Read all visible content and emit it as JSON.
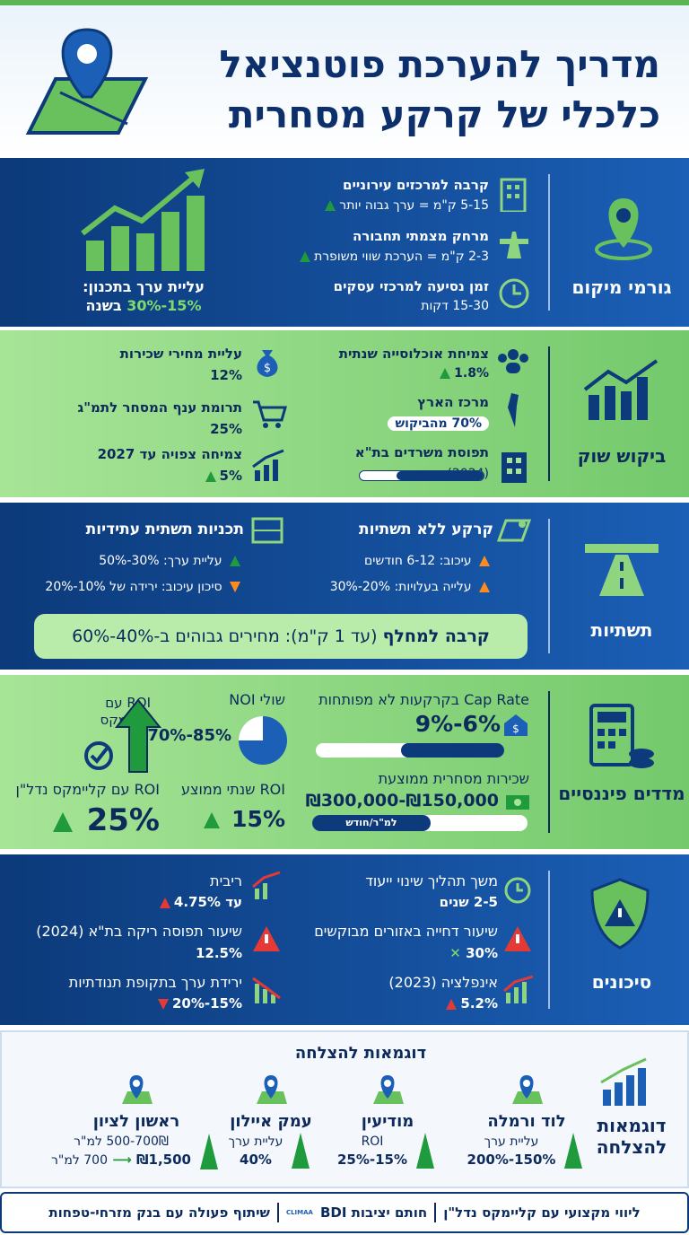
{
  "header": {
    "title": [
      "מדריך להערכת פוטנציאל",
      "כלכלי של קרקע מסחרית"
    ]
  },
  "location": {
    "label": "גורמי מיקום",
    "items": [
      {
        "title": "קרבה למרכזים עירוניים",
        "value": "5-15 ק\"מ = ערך גבוה יותר"
      },
      {
        "title": "מרחק מצמתי תחבורה",
        "value": "2-3 ק\"מ = הערכת שווי משופרת"
      },
      {
        "title": "זמן נסיעה למרכזי עסקים",
        "value": "15-30 דקות"
      }
    ],
    "highlight": {
      "label": "עליית ערך בתכנון:",
      "value": "15%-30%",
      "suffix": "בשנה"
    }
  },
  "demand": {
    "label": "ביקוש שוק",
    "right": [
      {
        "title": "צמיחת אוכלוסייה שנתית",
        "value": "1.8%"
      },
      {
        "title": "מרכז הארץ",
        "value": "70% מהביקוש"
      },
      {
        "title": "תפוסת משרדים בת\"א",
        "value": "(2024)"
      }
    ],
    "left": [
      {
        "title": "עליית מחירי שכירות",
        "value": "12%"
      },
      {
        "title": "תרומת ענף המסחר לתמ\"ג",
        "value": "25%"
      },
      {
        "title": "צמיחה צפויה עד 2027",
        "value": "5%"
      }
    ]
  },
  "infrastructure": {
    "label": "תשתיות",
    "without": {
      "title": "קרקע ללא תשתיות",
      "lines": [
        "עיכוב: 6-12 חודשים",
        "עלייה בעלויות: 20%-30%"
      ]
    },
    "future": {
      "title": "תכניות תשתית עתידיות",
      "lines": [
        "עליית ערך: 30%-50%",
        "סיכון עיכוב: ירידה של 10%-20%"
      ]
    },
    "banner": {
      "strong": "קרבה למחלף",
      "text": "(עד 1 ק\"מ): מחירים גבוהים ב-40%-60%"
    }
  },
  "financial": {
    "label": "מדדים פיננסיים",
    "cap_rate": {
      "title": "Cap Rate בקרקעות לא מפותחות",
      "value": "6%-9%"
    },
    "rent": {
      "title": "שכירות מסחרית ממוצעת",
      "value": "₪150,000-₪300,000",
      "unit": "למ\"ר/חודש"
    },
    "noi": {
      "title": "שולי NOI",
      "value": "70%-85%"
    },
    "roi": {
      "title": "ROI שנתי ממוצע",
      "value": "15%"
    },
    "roi_climax": {
      "title": "ROI עם קליימקס"
    },
    "roi_climax_realestate": {
      "title": "ROI עם קליימקס נדל\"ן",
      "value": "25%"
    }
  },
  "risks": {
    "label": "סיכונים",
    "right": [
      {
        "title": "משך תהליך שינוי ייעוד",
        "value": "2-5 שנים"
      },
      {
        "title": "שיעור דחייה באזורים מבוקשים",
        "value": "30%"
      },
      {
        "title": "אינפלציה (2023)",
        "value": "5.2%"
      }
    ],
    "left": [
      {
        "title": "ריבית",
        "value": "עד 4.75%"
      },
      {
        "title": "שיעור תפוסה ריקה בת\"א (2024)",
        "value": "12.5%"
      },
      {
        "title": "ירידת ערך בתקופת תנודתיות",
        "value": "15%-20%"
      }
    ]
  },
  "examples": {
    "title": "דוגמאות להצלחה",
    "label": "דוגמאות להצלחה",
    "cards": [
      {
        "name": "לוד ורמלה",
        "label": "עליית ערך",
        "value": "150%-200%"
      },
      {
        "name": "מודיעין",
        "label": "ROI",
        "value": "15%-25%"
      },
      {
        "name": "עמק איילון",
        "label": "עליית ערך",
        "value": "40%"
      },
      {
        "name": "ראשון לציון",
        "label": "500-700₪ למ\"ר",
        "from": "700 למ\"ר",
        "to": "₪1,500"
      }
    ]
  },
  "footer": {
    "parts": [
      "ליווי מקצועי עם קליימקס נדל\"ן",
      "חותם יציבות BDI",
      "שיתוף פעולה עם בנק מזרחי-טפחות"
    ],
    "logo": "CLIMAA"
  }
}
